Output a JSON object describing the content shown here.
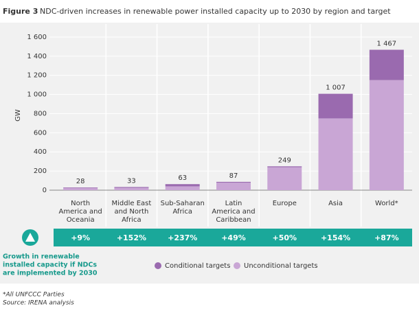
{
  "chart_data": {
    "type": "stacked_bar",
    "figure_label": "Figure 3",
    "title": "NDC-driven increases in renewable power installed capacity up to 2030 by region and target",
    "y_label": "GW",
    "categories": [
      [
        "North",
        "America and",
        "Oceania"
      ],
      [
        "Middle East",
        "and North",
        "Africa"
      ],
      [
        "Sub-Saharan",
        "Africa"
      ],
      [
        "Latin",
        "America and",
        "Caribbean"
      ],
      [
        "Europe"
      ],
      [
        "Asia"
      ],
      [
        "World*"
      ]
    ],
    "series": [
      {
        "name": "Unconditional targets",
        "color": "#c9a6d5",
        "values": [
          22,
          25,
          40,
          78,
          240,
          750,
          1150
        ]
      },
      {
        "name": "Conditional targets",
        "color": "#9a6aaf",
        "values": [
          6,
          8,
          23,
          9,
          9,
          257,
          317
        ]
      }
    ],
    "totals": [
      28,
      33,
      63,
      87,
      249,
      1007,
      1467
    ],
    "total_labels": [
      "28",
      "33",
      "63",
      "87",
      "249",
      "1 007",
      "1 467"
    ],
    "ylim": [
      0,
      1700
    ],
    "yticks": [
      0,
      200,
      400,
      600,
      800,
      {
        "value": 1000,
        "label": "1 000"
      },
      {
        "value": 1200,
        "label": "1 200"
      },
      {
        "value": 1400,
        "label": "1 400"
      },
      {
        "value": 1600,
        "label": "1 600"
      }
    ],
    "growth_caption": [
      "Growth in renewable",
      "installed capacity if NDCs",
      "are implemented by 2030"
    ],
    "growth": [
      "+9%",
      "+152%",
      "+237%",
      "+49%",
      "+50%",
      "+154%",
      "+87%"
    ],
    "footnotes": [
      "*All UNFCCC Parties",
      "Source: IRENA analysis"
    ]
  }
}
